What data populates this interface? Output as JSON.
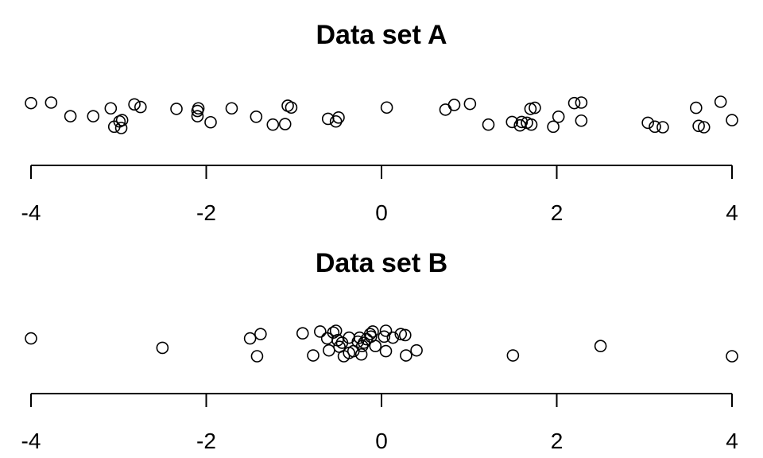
{
  "chart_data": [
    {
      "type": "scatter",
      "title": "Data set A",
      "xlabel": "",
      "ylabel": "",
      "xlim": [
        -4,
        4
      ],
      "ticks": [
        -4,
        -2,
        0,
        2,
        4
      ],
      "tick_labels": [
        "-4",
        "-2",
        "0",
        "2",
        "4"
      ],
      "grid": false,
      "jitter": [
        0,
        1
      ],
      "points": [
        {
          "x": -4.0,
          "j": 0.05
        },
        {
          "x": -3.77,
          "j": 0.03
        },
        {
          "x": -3.55,
          "j": 0.55
        },
        {
          "x": -3.29,
          "j": 0.55
        },
        {
          "x": -3.09,
          "j": 0.25
        },
        {
          "x": -3.05,
          "j": 0.95
        },
        {
          "x": -2.99,
          "j": 0.75
        },
        {
          "x": -2.97,
          "j": 1.0
        },
        {
          "x": -2.96,
          "j": 0.7
        },
        {
          "x": -2.82,
          "j": 0.1
        },
        {
          "x": -2.75,
          "j": 0.2
        },
        {
          "x": -2.34,
          "j": 0.27
        },
        {
          "x": -2.09,
          "j": 0.25
        },
        {
          "x": -2.1,
          "j": 0.35
        },
        {
          "x": -2.1,
          "j": 0.55
        },
        {
          "x": -1.95,
          "j": 0.78
        },
        {
          "x": -1.71,
          "j": 0.25
        },
        {
          "x": -1.43,
          "j": 0.57
        },
        {
          "x": -1.24,
          "j": 0.87
        },
        {
          "x": -1.1,
          "j": 0.85
        },
        {
          "x": -1.07,
          "j": 0.15
        },
        {
          "x": -1.03,
          "j": 0.22
        },
        {
          "x": -0.61,
          "j": 0.65
        },
        {
          "x": -0.52,
          "j": 0.75
        },
        {
          "x": -0.49,
          "j": 0.6
        },
        {
          "x": 0.06,
          "j": 0.22
        },
        {
          "x": 0.73,
          "j": 0.3
        },
        {
          "x": 0.83,
          "j": 0.12
        },
        {
          "x": 1.01,
          "j": 0.08
        },
        {
          "x": 1.22,
          "j": 0.87
        },
        {
          "x": 1.49,
          "j": 0.77
        },
        {
          "x": 1.58,
          "j": 0.9
        },
        {
          "x": 1.6,
          "j": 0.77
        },
        {
          "x": 1.66,
          "j": 0.8
        },
        {
          "x": 1.7,
          "j": 0.27
        },
        {
          "x": 1.75,
          "j": 0.23
        },
        {
          "x": 1.71,
          "j": 0.87
        },
        {
          "x": 1.96,
          "j": 0.95
        },
        {
          "x": 2.02,
          "j": 0.57
        },
        {
          "x": 2.2,
          "j": 0.05
        },
        {
          "x": 2.28,
          "j": 0.03
        },
        {
          "x": 2.28,
          "j": 0.72
        },
        {
          "x": 3.04,
          "j": 0.8
        },
        {
          "x": 3.12,
          "j": 0.95
        },
        {
          "x": 3.21,
          "j": 0.97
        },
        {
          "x": 3.59,
          "j": 0.23
        },
        {
          "x": 3.62,
          "j": 0.92
        },
        {
          "x": 3.68,
          "j": 0.97
        },
        {
          "x": 3.87,
          "j": 0.0
        },
        {
          "x": 4.0,
          "j": 0.7
        }
      ]
    },
    {
      "type": "scatter",
      "title": "Data set B",
      "xlabel": "",
      "ylabel": "",
      "xlim": [
        -4,
        4
      ],
      "ticks": [
        -4,
        -2,
        0,
        2,
        4
      ],
      "tick_labels": [
        "-4",
        "-2",
        "0",
        "2",
        "4"
      ],
      "grid": false,
      "jitter": [
        0,
        1
      ],
      "points": [
        {
          "x": -4.0,
          "j": 0.3
        },
        {
          "x": -2.5,
          "j": 0.67
        },
        {
          "x": -1.5,
          "j": 0.3
        },
        {
          "x": -1.38,
          "j": 0.13
        },
        {
          "x": -1.42,
          "j": 1.0
        },
        {
          "x": -0.9,
          "j": 0.1
        },
        {
          "x": -0.78,
          "j": 0.97
        },
        {
          "x": -0.7,
          "j": 0.03
        },
        {
          "x": -0.62,
          "j": 0.3
        },
        {
          "x": -0.6,
          "j": 0.77
        },
        {
          "x": -0.55,
          "j": 0.07
        },
        {
          "x": -0.52,
          "j": 0.0
        },
        {
          "x": -0.5,
          "j": 0.37
        },
        {
          "x": -0.48,
          "j": 0.63
        },
        {
          "x": -0.45,
          "j": 0.47
        },
        {
          "x": -0.43,
          "j": 1.0
        },
        {
          "x": -0.37,
          "j": 0.27
        },
        {
          "x": -0.37,
          "j": 0.87
        },
        {
          "x": -0.32,
          "j": 0.8
        },
        {
          "x": -0.27,
          "j": 0.43
        },
        {
          "x": -0.25,
          "j": 0.27
        },
        {
          "x": -0.23,
          "j": 0.93
        },
        {
          "x": -0.22,
          "j": 0.6
        },
        {
          "x": -0.2,
          "j": 0.47
        },
        {
          "x": -0.17,
          "j": 0.33
        },
        {
          "x": -0.13,
          "j": 0.13
        },
        {
          "x": -0.12,
          "j": 0.23
        },
        {
          "x": -0.1,
          "j": 0.03
        },
        {
          "x": -0.07,
          "j": 0.6
        },
        {
          "x": 0.03,
          "j": 0.23
        },
        {
          "x": 0.05,
          "j": 0.0
        },
        {
          "x": 0.05,
          "j": 0.8
        },
        {
          "x": 0.13,
          "j": 0.27
        },
        {
          "x": 0.22,
          "j": 0.13
        },
        {
          "x": 0.27,
          "j": 0.17
        },
        {
          "x": 0.28,
          "j": 0.97
        },
        {
          "x": 0.4,
          "j": 0.77
        },
        {
          "x": 1.5,
          "j": 0.97
        },
        {
          "x": 2.5,
          "j": 0.6
        },
        {
          "x": 4.0,
          "j": 1.0
        }
      ]
    }
  ]
}
